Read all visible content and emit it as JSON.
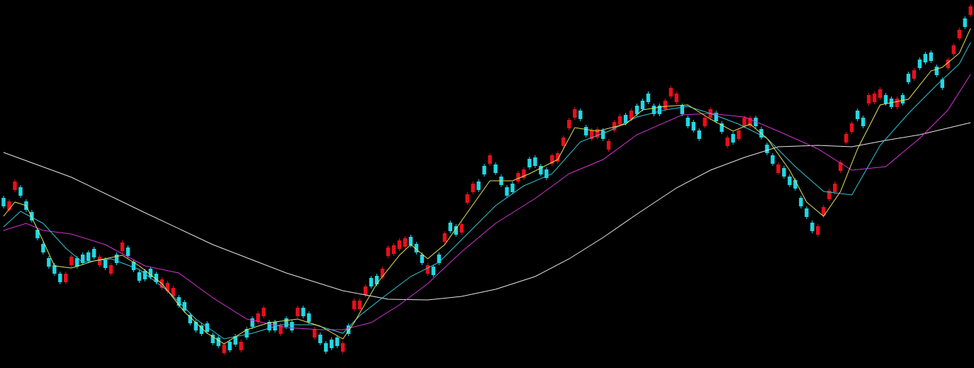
{
  "chart_data": {
    "type": "candlestick",
    "xlim": [
      -0.63,
      171.6
    ],
    "ylim": [
      0,
      519
    ],
    "up_color": "#e8101c",
    "down_color": "#22d8e6",
    "open": [
      240,
      223,
      251,
      255,
      235,
      220,
      195,
      175,
      155,
      145,
      133,
      121,
      145,
      155,
      160,
      163,
      168,
      145,
      153,
      133,
      160,
      165,
      170,
      150,
      135,
      137,
      140,
      133,
      113,
      108,
      101,
      100,
      93,
      75,
      65,
      60,
      63,
      47,
      43,
      21,
      37,
      45,
      25,
      55,
      70,
      65,
      73,
      65,
      65,
      48,
      70,
      65,
      73,
      85,
      77,
      43,
      47,
      35,
      40,
      43,
      23,
      60,
      83,
      83,
      103,
      127,
      130,
      128,
      158,
      161,
      168,
      171,
      185,
      175,
      160,
      133,
      143,
      160,
      178,
      205,
      200,
      191,
      233,
      248,
      263,
      285,
      288,
      287,
      270,
      255,
      260,
      263,
      268,
      295,
      297,
      285,
      280,
      288,
      291,
      313,
      338,
      353,
      363,
      340,
      323,
      325,
      335,
      308,
      335,
      343,
      357,
      351,
      370,
      377,
      387,
      370,
      370,
      365,
      383,
      375,
      370,
      353,
      347,
      335,
      341,
      353,
      360,
      345,
      313,
      330,
      323,
      341,
      341,
      353,
      337,
      315,
      300,
      275,
      282,
      270,
      265,
      240,
      225,
      205,
      188,
      215,
      238,
      248,
      278,
      318,
      333,
      363,
      353,
      373,
      375,
      381,
      385,
      380,
      368,
      385,
      415,
      408,
      435,
      443,
      445,
      425,
      407,
      423,
      443,
      465,
      493,
      498
    ],
    "close": [
      228,
      235,
      263,
      243,
      223,
      208,
      183,
      163,
      143,
      133,
      121,
      133,
      157,
      143,
      148,
      151,
      156,
      157,
      141,
      145,
      148,
      177,
      158,
      138,
      123,
      125,
      128,
      121,
      125,
      120,
      113,
      88,
      81,
      63,
      53,
      48,
      51,
      35,
      31,
      33,
      25,
      33,
      37,
      43,
      58,
      77,
      85,
      53,
      53,
      60,
      58,
      53,
      85,
      73,
      65,
      55,
      35,
      23,
      28,
      31,
      35,
      48,
      95,
      95,
      115,
      115,
      118,
      140,
      170,
      173,
      180,
      183,
      173,
      163,
      148,
      145,
      131,
      148,
      190,
      193,
      188,
      203,
      245,
      260,
      251,
      273,
      300,
      275,
      258,
      243,
      248,
      275,
      280,
      283,
      285,
      273,
      268,
      300,
      303,
      325,
      350,
      365,
      351,
      328,
      335,
      337,
      323,
      320,
      347,
      355,
      345,
      363,
      358,
      365,
      375,
      358,
      358,
      377,
      395,
      387,
      358,
      341,
      335,
      323,
      353,
      365,
      348,
      333,
      325,
      318,
      335,
      353,
      353,
      341,
      325,
      303,
      288,
      287,
      270,
      258,
      253,
      228,
      213,
      193,
      200,
      227,
      250,
      260,
      290,
      330,
      345,
      351,
      341,
      385,
      387,
      393,
      373,
      368,
      380,
      373,
      403,
      420,
      423,
      431,
      433,
      413,
      395,
      435,
      455,
      477,
      481,
      510
    ],
    "high": [
      243,
      238,
      266,
      258,
      238,
      223,
      198,
      178,
      158,
      148,
      136,
      136,
      160,
      158,
      163,
      166,
      171,
      160,
      156,
      148,
      163,
      180,
      173,
      153,
      138,
      140,
      143,
      136,
      128,
      123,
      116,
      103,
      96,
      78,
      68,
      63,
      66,
      50,
      46,
      36,
      40,
      48,
      40,
      58,
      73,
      80,
      88,
      68,
      68,
      63,
      73,
      68,
      88,
      88,
      80,
      58,
      50,
      38,
      43,
      46,
      38,
      63,
      98,
      98,
      118,
      130,
      133,
      143,
      173,
      176,
      183,
      186,
      188,
      178,
      163,
      148,
      146,
      163,
      193,
      208,
      203,
      206,
      248,
      263,
      266,
      288,
      303,
      290,
      273,
      258,
      263,
      278,
      283,
      298,
      300,
      288,
      283,
      303,
      306,
      328,
      353,
      368,
      366,
      343,
      338,
      340,
      338,
      323,
      350,
      358,
      360,
      366,
      373,
      380,
      390,
      373,
      373,
      380,
      398,
      390,
      373,
      356,
      350,
      338,
      356,
      368,
      363,
      348,
      328,
      333,
      338,
      356,
      356,
      356,
      340,
      318,
      303,
      290,
      285,
      273,
      268,
      243,
      228,
      208,
      203,
      230,
      253,
      263,
      293,
      333,
      348,
      366,
      356,
      388,
      390,
      396,
      388,
      383,
      383,
      388,
      418,
      423,
      438,
      446,
      448,
      428,
      410,
      438,
      458,
      480,
      496,
      513
    ],
    "low": [
      225,
      220,
      248,
      240,
      220,
      205,
      180,
      160,
      140,
      130,
      118,
      118,
      142,
      140,
      145,
      148,
      153,
      142,
      138,
      130,
      145,
      162,
      155,
      135,
      120,
      122,
      125,
      118,
      110,
      105,
      98,
      85,
      78,
      60,
      50,
      45,
      48,
      32,
      28,
      18,
      22,
      30,
      22,
      40,
      55,
      62,
      70,
      50,
      50,
      45,
      55,
      50,
      70,
      70,
      62,
      40,
      32,
      20,
      25,
      28,
      20,
      45,
      80,
      80,
      100,
      112,
      115,
      125,
      155,
      158,
      165,
      168,
      170,
      160,
      145,
      130,
      128,
      145,
      175,
      190,
      185,
      188,
      230,
      245,
      248,
      270,
      285,
      272,
      255,
      240,
      245,
      260,
      265,
      280,
      282,
      270,
      265,
      285,
      288,
      310,
      335,
      350,
      348,
      325,
      320,
      322,
      320,
      305,
      332,
      340,
      342,
      348,
      355,
      362,
      372,
      355,
      355,
      362,
      380,
      372,
      355,
      338,
      332,
      320,
      338,
      350,
      345,
      330,
      310,
      315,
      320,
      338,
      338,
      338,
      322,
      300,
      285,
      272,
      267,
      255,
      250,
      225,
      210,
      190,
      185,
      212,
      235,
      245,
      275,
      315,
      330,
      348,
      338,
      370,
      372,
      378,
      370,
      365,
      365,
      370,
      400,
      405,
      420,
      428,
      430,
      410,
      392,
      420,
      440,
      462,
      478,
      495
    ],
    "lines": [
      {
        "color": "#e6e6e6",
        "x": [
          0,
          12,
          25,
          37,
          50,
          60,
          68,
          75,
          81,
          87,
          94,
          100,
          106,
          112,
          119,
          125,
          131,
          137,
          144,
          150,
          156,
          162,
          171
        ],
        "values": [
          304,
          269,
          219,
          174,
          134,
          109,
          97,
          96,
          101,
          111,
          129,
          154,
          184,
          217,
          254,
          279,
          297,
          312,
          314,
          312,
          321,
          329,
          346
        ]
      },
      {
        "color": "#d433d4",
        "x": [
          0,
          4,
          7,
          12,
          18,
          25,
          31,
          37,
          43,
          50,
          56,
          60,
          65,
          70,
          75,
          81,
          87,
          94,
          100,
          106,
          112,
          120,
          125,
          131,
          137,
          144,
          150,
          156,
          162,
          167,
          171
        ],
        "values": [
          194,
          204,
          194,
          189,
          174,
          144,
          134,
          99,
          69,
          57,
          54,
          54,
          64,
          89,
          119,
          164,
          204,
          239,
          274,
          294,
          329,
          357,
          359,
          354,
          334,
          309,
          279,
          284,
          324,
          364,
          414
        ]
      },
      {
        "color": "#33c6d6",
        "x": [
          0,
          3,
          7,
          11,
          14,
          19,
          24,
          29,
          34,
          39,
          44,
          49,
          55,
          60,
          63,
          67,
          72,
          77,
          82,
          87,
          92,
          97,
          102,
          107,
          112,
          117,
          121,
          125,
          130,
          135,
          140,
          145,
          150,
          155,
          160,
          165,
          169,
          171
        ],
        "values": [
          199,
          221,
          204,
          169,
          149,
          154,
          139,
          109,
          69,
          41,
          49,
          61,
          61,
          49,
          74,
          99,
          129,
          149,
          189,
          229,
          257,
          274,
          319,
          334,
          354,
          364,
          369,
          359,
          344,
          324,
          284,
          249,
          244,
          314,
          359,
          399,
          429,
          459
        ]
      },
      {
        "color": "#e4e45a",
        "x": [
          0,
          2,
          4,
          7,
          9,
          12,
          16,
          21,
          24,
          28,
          32,
          36,
          39,
          43,
          47,
          52,
          56,
          60,
          62,
          66,
          70,
          72,
          75,
          78,
          82,
          86,
          90,
          93,
          98,
          101,
          105,
          110,
          113,
          117,
          121,
          125,
          129,
          132,
          135,
          139,
          142,
          145,
          148,
          151,
          155,
          160,
          164,
          166,
          169,
          171
        ],
        "values": [
          214,
          234,
          229,
          179,
          144,
          141,
          151,
          159,
          144,
          119,
          79,
          49,
          34,
          54,
          64,
          69,
          59,
          41,
          64,
          119,
          159,
          174,
          154,
          174,
          219,
          264,
          264,
          274,
          294,
          339,
          334,
          344,
          364,
          369,
          371,
          351,
          334,
          344,
          324,
          279,
          234,
          214,
          249,
          309,
          371,
          379,
          419,
          424,
          444,
          479
        ]
      }
    ]
  }
}
